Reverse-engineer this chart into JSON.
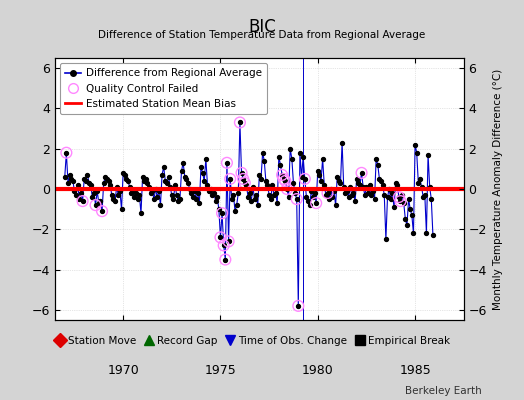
{
  "title": "BIC",
  "subtitle": "Difference of Station Temperature Data from Regional Average",
  "ylabel_right": "Monthly Temperature Anomaly Difference (°C)",
  "xlim": [
    1966.5,
    1987.5
  ],
  "ylim": [
    -6.5,
    6.5
  ],
  "yticks": [
    -6,
    -4,
    -2,
    0,
    2,
    4,
    6
  ],
  "xticks": [
    1970,
    1975,
    1980,
    1985
  ],
  "bias_line_y": 0.0,
  "fig_bg_color": "#d4d4d4",
  "plot_bg_color": "#ffffff",
  "time_of_obs_change_x": 1979.25,
  "series": [
    {
      "t": 1967.0,
      "v": 0.6
    },
    {
      "t": 1967.083,
      "v": 1.8
    },
    {
      "t": 1967.167,
      "v": 0.3
    },
    {
      "t": 1967.25,
      "v": 0.7
    },
    {
      "t": 1967.333,
      "v": 0.5
    },
    {
      "t": 1967.417,
      "v": 0.4
    },
    {
      "t": 1967.5,
      "v": -0.1
    },
    {
      "t": 1967.583,
      "v": -0.3
    },
    {
      "t": 1967.667,
      "v": 0.2
    },
    {
      "t": 1967.75,
      "v": -0.5
    },
    {
      "t": 1967.833,
      "v": -0.2
    },
    {
      "t": 1967.917,
      "v": -0.6
    },
    {
      "t": 1968.0,
      "v": 0.5
    },
    {
      "t": 1968.083,
      "v": 0.4
    },
    {
      "t": 1968.167,
      "v": 0.7
    },
    {
      "t": 1968.25,
      "v": 0.3
    },
    {
      "t": 1968.333,
      "v": 0.2
    },
    {
      "t": 1968.417,
      "v": -0.4
    },
    {
      "t": 1968.5,
      "v": -0.2
    },
    {
      "t": 1968.583,
      "v": -0.8
    },
    {
      "t": 1968.667,
      "v": -0.1
    },
    {
      "t": 1968.75,
      "v": -0.7
    },
    {
      "t": 1968.833,
      "v": -0.6
    },
    {
      "t": 1968.917,
      "v": -1.1
    },
    {
      "t": 1969.0,
      "v": 0.3
    },
    {
      "t": 1969.083,
      "v": 0.6
    },
    {
      "t": 1969.167,
      "v": 0.5
    },
    {
      "t": 1969.25,
      "v": 0.4
    },
    {
      "t": 1969.333,
      "v": 0.2
    },
    {
      "t": 1969.417,
      "v": -0.3
    },
    {
      "t": 1969.5,
      "v": -0.5
    },
    {
      "t": 1969.583,
      "v": -0.6
    },
    {
      "t": 1969.667,
      "v": 0.1
    },
    {
      "t": 1969.75,
      "v": -0.3
    },
    {
      "t": 1969.833,
      "v": -0.1
    },
    {
      "t": 1969.917,
      "v": -1.0
    },
    {
      "t": 1970.0,
      "v": 0.8
    },
    {
      "t": 1970.083,
      "v": 0.7
    },
    {
      "t": 1970.167,
      "v": 0.5
    },
    {
      "t": 1970.25,
      "v": 0.4
    },
    {
      "t": 1970.333,
      "v": 0.1
    },
    {
      "t": 1970.417,
      "v": -0.2
    },
    {
      "t": 1970.5,
      "v": -0.1
    },
    {
      "t": 1970.583,
      "v": -0.4
    },
    {
      "t": 1970.667,
      "v": -0.2
    },
    {
      "t": 1970.75,
      "v": -0.5
    },
    {
      "t": 1970.833,
      "v": -0.3
    },
    {
      "t": 1970.917,
      "v": -1.2
    },
    {
      "t": 1971.0,
      "v": 0.6
    },
    {
      "t": 1971.083,
      "v": 0.4
    },
    {
      "t": 1971.167,
      "v": 0.5
    },
    {
      "t": 1971.25,
      "v": 0.3
    },
    {
      "t": 1971.333,
      "v": 0.1
    },
    {
      "t": 1971.417,
      "v": -0.2
    },
    {
      "t": 1971.5,
      "v": -0.1
    },
    {
      "t": 1971.583,
      "v": -0.5
    },
    {
      "t": 1971.667,
      "v": 0.0
    },
    {
      "t": 1971.75,
      "v": -0.4
    },
    {
      "t": 1971.833,
      "v": -0.1
    },
    {
      "t": 1971.917,
      "v": -0.8
    },
    {
      "t": 1972.0,
      "v": 0.7
    },
    {
      "t": 1972.083,
      "v": 1.1
    },
    {
      "t": 1972.167,
      "v": 0.4
    },
    {
      "t": 1972.25,
      "v": 0.3
    },
    {
      "t": 1972.333,
      "v": 0.6
    },
    {
      "t": 1972.417,
      "v": 0.1
    },
    {
      "t": 1972.5,
      "v": -0.3
    },
    {
      "t": 1972.583,
      "v": -0.5
    },
    {
      "t": 1972.667,
      "v": 0.2
    },
    {
      "t": 1972.75,
      "v": -0.3
    },
    {
      "t": 1972.833,
      "v": -0.6
    },
    {
      "t": 1972.917,
      "v": -0.5
    },
    {
      "t": 1973.0,
      "v": 0.9
    },
    {
      "t": 1973.083,
      "v": 1.3
    },
    {
      "t": 1973.167,
      "v": 0.6
    },
    {
      "t": 1973.25,
      "v": 0.5
    },
    {
      "t": 1973.333,
      "v": 0.3
    },
    {
      "t": 1973.417,
      "v": 0.0
    },
    {
      "t": 1973.5,
      "v": -0.2
    },
    {
      "t": 1973.583,
      "v": -0.4
    },
    {
      "t": 1973.667,
      "v": -0.1
    },
    {
      "t": 1973.75,
      "v": -0.5
    },
    {
      "t": 1973.833,
      "v": -0.2
    },
    {
      "t": 1973.917,
      "v": -0.7
    },
    {
      "t": 1974.0,
      "v": 1.1
    },
    {
      "t": 1974.083,
      "v": 0.8
    },
    {
      "t": 1974.167,
      "v": 0.4
    },
    {
      "t": 1974.25,
      "v": 1.5
    },
    {
      "t": 1974.333,
      "v": 0.2
    },
    {
      "t": 1974.417,
      "v": -0.1
    },
    {
      "t": 1974.5,
      "v": 0.0
    },
    {
      "t": 1974.583,
      "v": -0.3
    },
    {
      "t": 1974.667,
      "v": -0.2
    },
    {
      "t": 1974.75,
      "v": -0.6
    },
    {
      "t": 1974.833,
      "v": -0.4
    },
    {
      "t": 1974.917,
      "v": -1.0
    },
    {
      "t": 1975.0,
      "v": -2.4
    },
    {
      "t": 1975.083,
      "v": -1.2
    },
    {
      "t": 1975.167,
      "v": -2.8
    },
    {
      "t": 1975.25,
      "v": -3.5
    },
    {
      "t": 1975.333,
      "v": 1.3
    },
    {
      "t": 1975.417,
      "v": -2.6
    },
    {
      "t": 1975.5,
      "v": 0.5
    },
    {
      "t": 1975.583,
      "v": -0.5
    },
    {
      "t": 1975.667,
      "v": -0.3
    },
    {
      "t": 1975.75,
      "v": -1.1
    },
    {
      "t": 1975.833,
      "v": -0.8
    },
    {
      "t": 1975.917,
      "v": -0.2
    },
    {
      "t": 1976.0,
      "v": 3.3
    },
    {
      "t": 1976.083,
      "v": 0.8
    },
    {
      "t": 1976.167,
      "v": 0.5
    },
    {
      "t": 1976.25,
      "v": 0.3
    },
    {
      "t": 1976.333,
      "v": 0.2
    },
    {
      "t": 1976.417,
      "v": -0.4
    },
    {
      "t": 1976.5,
      "v": -0.2
    },
    {
      "t": 1976.583,
      "v": -0.6
    },
    {
      "t": 1976.667,
      "v": 0.1
    },
    {
      "t": 1976.75,
      "v": -0.5
    },
    {
      "t": 1976.833,
      "v": -0.3
    },
    {
      "t": 1976.917,
      "v": -0.8
    },
    {
      "t": 1977.0,
      "v": 0.7
    },
    {
      "t": 1977.083,
      "v": 0.5
    },
    {
      "t": 1977.167,
      "v": 1.8
    },
    {
      "t": 1977.25,
      "v": 1.4
    },
    {
      "t": 1977.333,
      "v": 0.4
    },
    {
      "t": 1977.417,
      "v": 0.2
    },
    {
      "t": 1977.5,
      "v": -0.3
    },
    {
      "t": 1977.583,
      "v": -0.5
    },
    {
      "t": 1977.667,
      "v": 0.2
    },
    {
      "t": 1977.75,
      "v": -0.3
    },
    {
      "t": 1977.833,
      "v": -0.2
    },
    {
      "t": 1977.917,
      "v": -0.7
    },
    {
      "t": 1978.0,
      "v": 1.6
    },
    {
      "t": 1978.083,
      "v": 1.2
    },
    {
      "t": 1978.167,
      "v": 0.7
    },
    {
      "t": 1978.25,
      "v": 0.5
    },
    {
      "t": 1978.333,
      "v": 0.4
    },
    {
      "t": 1978.417,
      "v": 0.0
    },
    {
      "t": 1978.5,
      "v": -0.4
    },
    {
      "t": 1978.583,
      "v": 2.0
    },
    {
      "t": 1978.667,
      "v": 1.5
    },
    {
      "t": 1978.75,
      "v": 0.3
    },
    {
      "t": 1978.833,
      "v": -0.2
    },
    {
      "t": 1978.917,
      "v": -0.5
    },
    {
      "t": 1979.0,
      "v": -5.8
    },
    {
      "t": 1979.083,
      "v": 1.8
    },
    {
      "t": 1979.167,
      "v": 0.6
    },
    {
      "t": 1979.25,
      "v": 1.6
    },
    {
      "t": 1979.333,
      "v": 0.5
    },
    {
      "t": 1979.417,
      "v": -0.4
    },
    {
      "t": 1979.5,
      "v": -0.6
    },
    {
      "t": 1979.583,
      "v": -0.8
    },
    {
      "t": 1979.667,
      "v": -0.1
    },
    {
      "t": 1979.75,
      "v": -0.4
    },
    {
      "t": 1979.833,
      "v": -0.2
    },
    {
      "t": 1979.917,
      "v": -0.7
    },
    {
      "t": 1980.0,
      "v": 0.9
    },
    {
      "t": 1980.083,
      "v": 0.7
    },
    {
      "t": 1980.167,
      "v": 0.4
    },
    {
      "t": 1980.25,
      "v": 1.5
    },
    {
      "t": 1980.333,
      "v": 0.2
    },
    {
      "t": 1980.417,
      "v": -0.3
    },
    {
      "t": 1980.5,
      "v": -0.2
    },
    {
      "t": 1980.583,
      "v": -0.5
    },
    {
      "t": 1980.667,
      "v": 0.0
    },
    {
      "t": 1980.75,
      "v": -0.4
    },
    {
      "t": 1980.833,
      "v": -0.1
    },
    {
      "t": 1980.917,
      "v": -0.8
    },
    {
      "t": 1981.0,
      "v": 0.6
    },
    {
      "t": 1981.083,
      "v": 0.4
    },
    {
      "t": 1981.167,
      "v": 0.3
    },
    {
      "t": 1981.25,
      "v": 2.3
    },
    {
      "t": 1981.333,
      "v": 0.1
    },
    {
      "t": 1981.417,
      "v": -0.2
    },
    {
      "t": 1981.5,
      "v": -0.1
    },
    {
      "t": 1981.583,
      "v": -0.4
    },
    {
      "t": 1981.667,
      "v": 0.1
    },
    {
      "t": 1981.75,
      "v": -0.3
    },
    {
      "t": 1981.833,
      "v": -0.2
    },
    {
      "t": 1981.917,
      "v": -0.6
    },
    {
      "t": 1982.0,
      "v": 0.5
    },
    {
      "t": 1982.083,
      "v": 0.3
    },
    {
      "t": 1982.167,
      "v": 0.2
    },
    {
      "t": 1982.25,
      "v": 0.8
    },
    {
      "t": 1982.333,
      "v": 0.1
    },
    {
      "t": 1982.417,
      "v": -0.3
    },
    {
      "t": 1982.5,
      "v": 0.1
    },
    {
      "t": 1982.583,
      "v": -0.2
    },
    {
      "t": 1982.667,
      "v": 0.2
    },
    {
      "t": 1982.75,
      "v": -0.3
    },
    {
      "t": 1982.833,
      "v": -0.1
    },
    {
      "t": 1982.917,
      "v": -0.5
    },
    {
      "t": 1983.0,
      "v": 1.5
    },
    {
      "t": 1983.083,
      "v": 1.2
    },
    {
      "t": 1983.167,
      "v": 0.5
    },
    {
      "t": 1983.25,
      "v": 0.4
    },
    {
      "t": 1983.333,
      "v": 0.2
    },
    {
      "t": 1983.417,
      "v": -0.3
    },
    {
      "t": 1983.5,
      "v": -2.5
    },
    {
      "t": 1983.583,
      "v": -0.4
    },
    {
      "t": 1983.667,
      "v": 0.0
    },
    {
      "t": 1983.75,
      "v": -0.5
    },
    {
      "t": 1983.833,
      "v": -0.2
    },
    {
      "t": 1983.917,
      "v": -0.9
    },
    {
      "t": 1984.0,
      "v": 0.3
    },
    {
      "t": 1984.083,
      "v": 0.2
    },
    {
      "t": 1984.167,
      "v": -0.4
    },
    {
      "t": 1984.25,
      "v": -0.6
    },
    {
      "t": 1984.333,
      "v": -0.3
    },
    {
      "t": 1984.417,
      "v": -0.7
    },
    {
      "t": 1984.5,
      "v": -1.5
    },
    {
      "t": 1984.583,
      "v": -1.8
    },
    {
      "t": 1984.667,
      "v": -0.5
    },
    {
      "t": 1984.75,
      "v": -1.0
    },
    {
      "t": 1984.833,
      "v": -1.3
    },
    {
      "t": 1984.917,
      "v": -2.2
    },
    {
      "t": 1985.0,
      "v": 2.2
    },
    {
      "t": 1985.083,
      "v": 1.8
    },
    {
      "t": 1985.167,
      "v": 0.3
    },
    {
      "t": 1985.25,
      "v": 0.5
    },
    {
      "t": 1985.333,
      "v": 0.1
    },
    {
      "t": 1985.417,
      "v": -0.4
    },
    {
      "t": 1985.5,
      "v": -0.3
    },
    {
      "t": 1985.583,
      "v": -2.2
    },
    {
      "t": 1985.667,
      "v": 1.7
    },
    {
      "t": 1985.75,
      "v": 0.1
    },
    {
      "t": 1985.833,
      "v": -0.5
    },
    {
      "t": 1985.917,
      "v": -2.3
    }
  ],
  "qc_failed_indices": [
    1,
    11,
    19,
    23,
    96,
    97,
    98,
    99,
    100,
    101,
    102,
    108,
    109,
    110,
    111,
    134,
    135,
    136,
    137,
    143,
    144,
    148,
    155,
    162,
    183,
    206,
    207
  ],
  "line_color": "#0000cc",
  "dot_color": "#000000",
  "bias_color": "#ff0000",
  "qc_color": "#ff88ff",
  "legend2_items": [
    {
      "label": "Station Move",
      "color": "#dd0000",
      "marker": "D"
    },
    {
      "label": "Record Gap",
      "color": "#006600",
      "marker": "^"
    },
    {
      "label": "Time of Obs. Change",
      "color": "#0000cc",
      "marker": "v"
    },
    {
      "label": "Empirical Break",
      "color": "#000000",
      "marker": "s"
    }
  ]
}
